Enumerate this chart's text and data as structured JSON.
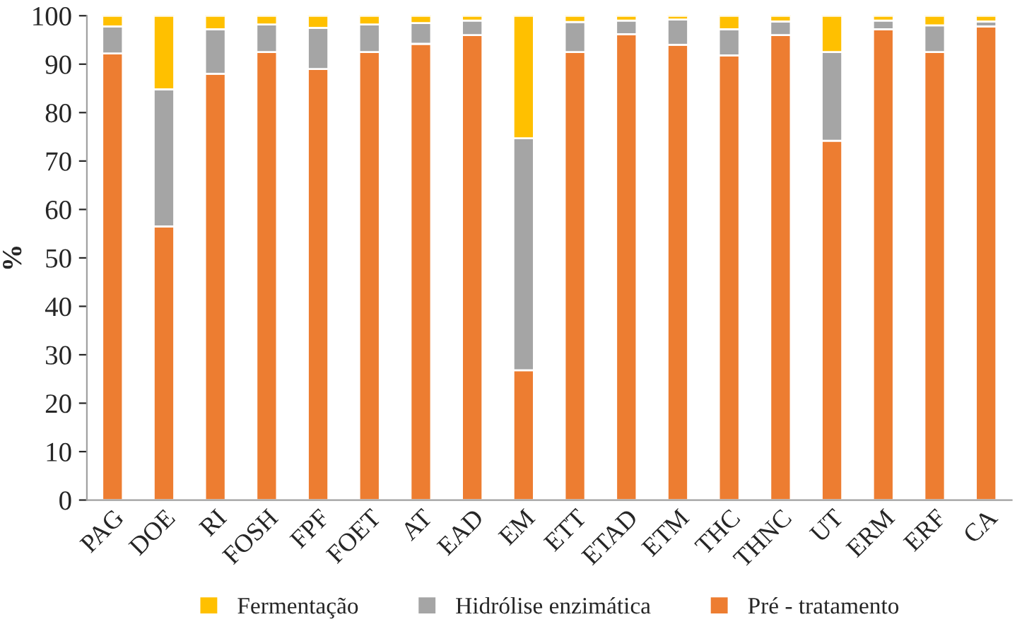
{
  "chart_data": {
    "type": "bar",
    "stacked": true,
    "ylabel": "%",
    "ylim": [
      0,
      100
    ],
    "yticks": [
      0,
      10,
      20,
      30,
      40,
      50,
      60,
      70,
      80,
      90,
      100
    ],
    "grid": false,
    "legend": "bottom",
    "categories": [
      "PAG",
      "DOE",
      "RI",
      "FOSH",
      "FPF",
      "FOET",
      "AT",
      "EAD",
      "EM",
      "ETT",
      "ETAD",
      "ETM",
      "THC",
      "THNC",
      "UT",
      "ERM",
      "ERF",
      "CA"
    ],
    "series": [
      {
        "name": "Pré - tratamento",
        "color": "#ed7d31",
        "values": [
          92.2,
          56.5,
          88,
          92.5,
          89,
          92.5,
          94.2,
          96,
          26.8,
          92.5,
          96.2,
          94,
          91.8,
          96,
          74.2,
          97.2,
          92.5,
          97.8
        ]
      },
      {
        "name": "Hidrólise enzimática",
        "color": "#a5a5a5",
        "values": [
          5.6,
          28.3,
          9.2,
          5.7,
          8.5,
          5.7,
          4.3,
          3,
          47.9,
          6.2,
          2.8,
          5.2,
          5.4,
          2.8,
          18.3,
          1.8,
          5.5,
          1.0
        ]
      },
      {
        "name": "Fermentação",
        "color": "#ffc000",
        "values": [
          2.2,
          15.2,
          2.8,
          1.8,
          2.5,
          1.8,
          1.5,
          1,
          25.3,
          1.3,
          1,
          0.8,
          2.8,
          1.2,
          7.5,
          1,
          2,
          1.2
        ]
      }
    ]
  }
}
